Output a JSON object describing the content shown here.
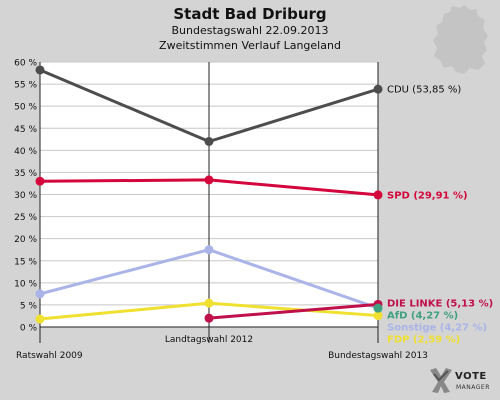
{
  "header": {
    "title": "Stadt Bad Driburg",
    "subtitle": "Bundestagswahl 22.09.2013",
    "subtitle2": "Zweitstimmen Verlauf Langeland"
  },
  "branding": {
    "logo_text_1": "VOTE",
    "logo_text_2": "MANAGER",
    "map_icon": "germany-map-silhouette"
  },
  "chart_data": {
    "type": "line",
    "categories": [
      "Ratswahl 2009",
      "Landtagswahl 2012",
      "Bundestagswahl 2013"
    ],
    "ylim": [
      0,
      60
    ],
    "yticks": [
      "0 %",
      "5 %",
      "10 %",
      "15 %",
      "20 %",
      "25 %",
      "30 %",
      "35 %",
      "40 %",
      "45 %",
      "50 %",
      "55 %",
      "60 %"
    ],
    "grid": "horizontal",
    "series": [
      {
        "name": "CDU",
        "values": [
          58.2,
          42.0,
          53.85
        ],
        "color": "#4d4d4d",
        "label": "CDU (53,85 %)"
      },
      {
        "name": "SPD",
        "values": [
          33.0,
          33.3,
          29.91
        ],
        "color": "#d4063c",
        "label": "SPD (29,91 %)"
      },
      {
        "name": "DIE LINKE",
        "values": [
          null,
          2.0,
          5.13
        ],
        "color": "#c0104a",
        "label": "DIE LINKE (5,13 %)"
      },
      {
        "name": "AfD",
        "values": [
          null,
          null,
          4.27
        ],
        "color": "#40a080",
        "label": "AfD (4,27 %)"
      },
      {
        "name": "Sonstige",
        "values": [
          7.5,
          17.5,
          4.27
        ],
        "color": "#aab4e8",
        "label": "Sonstige (4,27 %)"
      },
      {
        "name": "FDP",
        "values": [
          1.8,
          5.4,
          2.59
        ],
        "color": "#f0e030",
        "label": "FDP (2,59 %)"
      }
    ]
  }
}
